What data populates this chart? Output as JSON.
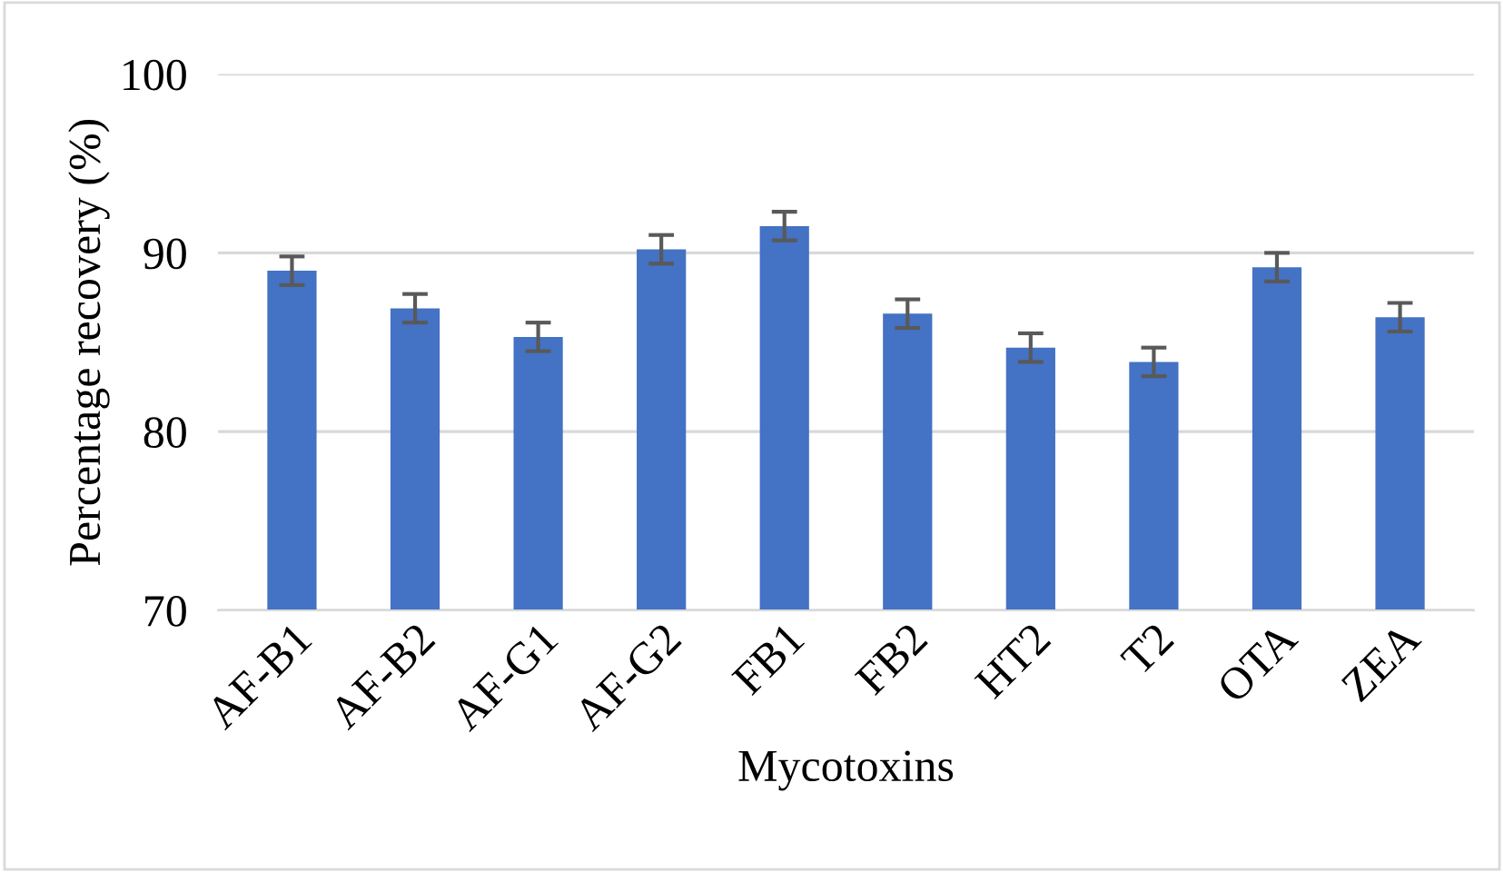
{
  "chart_data": {
    "type": "bar",
    "xlabel": "Mycotoxins",
    "ylabel": "Percentage recovery (%)",
    "categories": [
      "AF-B1",
      "AF-B2",
      "AF-G1",
      "AF-G2",
      "FB1",
      "FB2",
      "HT2",
      "T2",
      "OTA",
      "ZEA"
    ],
    "values": [
      89.0,
      86.9,
      85.3,
      90.2,
      91.5,
      86.6,
      84.7,
      83.9,
      89.2,
      86.4
    ],
    "errors": [
      0.8,
      0.8,
      0.8,
      0.8,
      0.8,
      0.8,
      0.8,
      0.8,
      0.8,
      0.8
    ],
    "color": "#4472c4",
    "ylim": [
      70,
      100
    ],
    "yticks": [
      70,
      80,
      90,
      100
    ],
    "grid": "y"
  }
}
